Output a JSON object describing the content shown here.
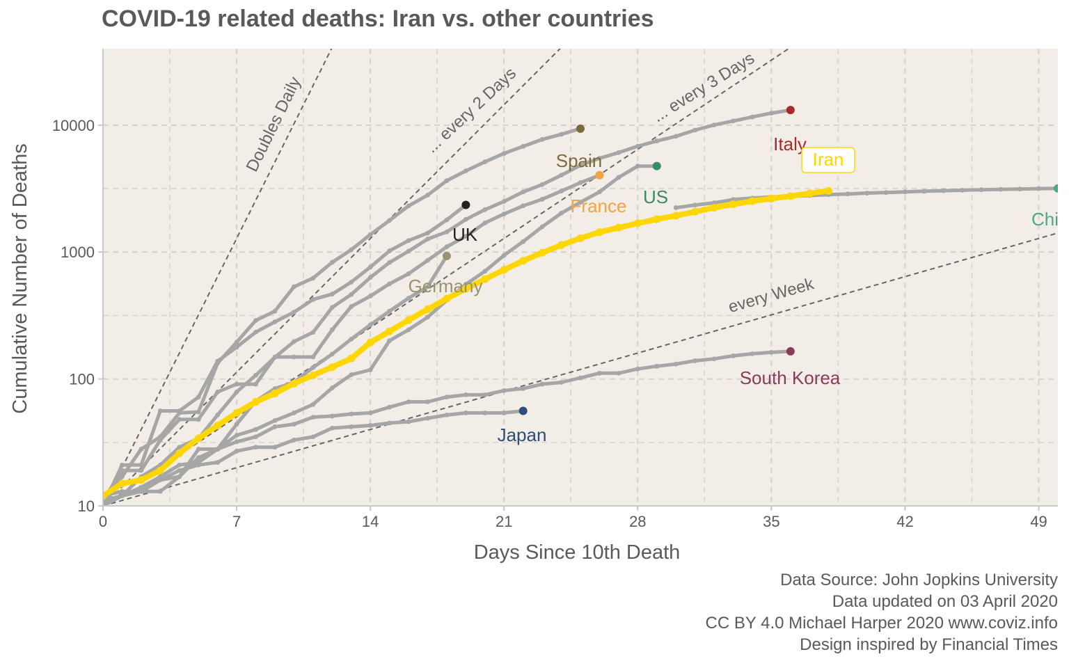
{
  "chart_data": {
    "type": "line",
    "title": "COVID-19 related deaths: Iran vs. other countries",
    "xlabel": "Days Since 10th Death",
    "ylabel": "Cumulative Number of Deaths",
    "xlim": [
      0,
      50
    ],
    "ylim": [
      10,
      40000
    ],
    "y_scale": "log",
    "x_ticks": [
      0,
      7,
      14,
      21,
      28,
      35,
      42,
      49
    ],
    "y_ticks": [
      10,
      100,
      1000,
      10000
    ],
    "y_tick_labels": [
      "10",
      "100",
      "1000",
      "10000"
    ],
    "grid": true,
    "highlight": "Iran",
    "colors": {
      "panel_bg": "#f2ede6",
      "context_line": "#a6a6a6",
      "highlight_line": "#ffd700",
      "reference_line": "#666666",
      "grid": "#d6d2cc"
    },
    "reference_lines": [
      {
        "label": "Doubles Daily",
        "doubling_days": 1
      },
      {
        "label": "... every 2 Days",
        "doubling_days": 2
      },
      {
        "label": "... every 3 Days",
        "doubling_days": 3
      },
      {
        "label": "every  Week",
        "doubling_days": 7
      }
    ],
    "series": [
      {
        "name": "Iran",
        "color": "#ffd700",
        "x": [
          0,
          1,
          2,
          3,
          4,
          5,
          6,
          7,
          8,
          9,
          10,
          11,
          12,
          13,
          14,
          15,
          16,
          17,
          18,
          19,
          20,
          21,
          22,
          23,
          24,
          25,
          26,
          27,
          28,
          29,
          30,
          31,
          32,
          33,
          34,
          35,
          36,
          37,
          38
        ],
        "y": [
          12,
          15,
          16,
          19,
          26,
          34,
          43,
          54,
          66,
          77,
          92,
          107,
          124,
          145,
          194,
          237,
          291,
          354,
          429,
          514,
          611,
          724,
          853,
          988,
          1135,
          1284,
          1433,
          1556,
          1685,
          1812,
          1934,
          2077,
          2234,
          2378,
          2517,
          2640,
          2757,
          2898,
          3036
        ]
      },
      {
        "name": "Italy",
        "color": "#a52a2a",
        "x": [
          0,
          1,
          2,
          3,
          4,
          5,
          6,
          7,
          8,
          9,
          10,
          11,
          12,
          13,
          14,
          15,
          16,
          17,
          18,
          19,
          20,
          21,
          22,
          23,
          24,
          25,
          26,
          27,
          28,
          29,
          30,
          31,
          32,
          33,
          34,
          35,
          36
        ],
        "y": [
          10,
          12,
          17,
          21,
          29,
          34,
          52,
          79,
          107,
          148,
          197,
          233,
          366,
          463,
          631,
          827,
          1016,
          1266,
          1441,
          1809,
          2158,
          2503,
          2978,
          3405,
          4032,
          4825,
          5476,
          6077,
          6820,
          7503,
          8165,
          9134,
          10023,
          10779,
          11591,
          12428,
          13155
        ]
      },
      {
        "name": "Spain",
        "color": "#7a6a3c",
        "x": [
          0,
          1,
          2,
          3,
          4,
          5,
          6,
          7,
          8,
          9,
          10,
          11,
          12,
          13,
          14,
          15,
          16,
          17,
          18,
          19,
          20,
          21,
          22,
          23,
          24,
          25
        ],
        "y": [
          10,
          17,
          28,
          35,
          54,
          55,
          133,
          195,
          289,
          342,
          533,
          623,
          830,
          1043,
          1375,
          1772,
          2311,
          2808,
          3647,
          4365,
          5138,
          5982,
          6803,
          7716,
          8464,
          9387
        ]
      },
      {
        "name": "UK",
        "color": "#222222",
        "x": [
          0,
          1,
          2,
          3,
          4,
          5,
          6,
          7,
          8,
          9,
          10,
          11,
          12,
          13,
          14,
          15,
          16,
          17,
          18,
          19
        ],
        "y": [
          10,
          21,
          21,
          56,
          56,
          72,
          138,
          178,
          234,
          282,
          336,
          423,
          466,
          580,
          761,
          1021,
          1231,
          1411,
          1793,
          2352
        ]
      },
      {
        "name": "France",
        "color": "#f4a340",
        "x": [
          0,
          1,
          2,
          3,
          4,
          5,
          6,
          7,
          8,
          9,
          10,
          11,
          12,
          13,
          14,
          15,
          16,
          17,
          18,
          19,
          20,
          21,
          22,
          23,
          24,
          25,
          26
        ],
        "y": [
          11,
          19,
          19,
          33,
          48,
          48,
          79,
          91,
          91,
          149,
          149,
          149,
          244,
          372,
          450,
          562,
          674,
          860,
          1100,
          1331,
          1696,
          1995,
          2314,
          2606,
          3024,
          3523,
          4032
        ]
      },
      {
        "name": "US",
        "color": "#3b8a6a",
        "x": [
          0,
          1,
          2,
          3,
          4,
          5,
          6,
          7,
          8,
          9,
          10,
          11,
          12,
          13,
          14,
          15,
          16,
          17,
          18,
          19,
          20,
          21,
          22,
          23,
          24,
          25,
          26,
          27,
          28,
          29
        ],
        "y": [
          11,
          12,
          14,
          17,
          21,
          22,
          28,
          36,
          40,
          47,
          54,
          63,
          85,
          108,
          118,
          200,
          244,
          307,
          417,
          557,
          706,
          942,
          1209,
          1581,
          2026,
          2467,
          2978,
          3873,
          4757,
          4757
        ]
      },
      {
        "name": "Germany",
        "color": "#9a9270",
        "x": [
          0,
          1,
          2,
          3,
          4,
          5,
          6,
          7,
          8,
          9,
          10,
          11,
          12,
          13,
          14,
          15,
          16,
          17,
          18
        ],
        "y": [
          12,
          13,
          13,
          13,
          17,
          24,
          28,
          44,
          67,
          84,
          94,
          123,
          157,
          206,
          267,
          342,
          433,
          533,
          931
        ]
      },
      {
        "name": "China",
        "color": "#4aaa88",
        "x": [
          30,
          31,
          32,
          33,
          34,
          35,
          36,
          37,
          38,
          39,
          40,
          41,
          42,
          43,
          44,
          45,
          46,
          47,
          48,
          49,
          50
        ],
        "y": [
          2236,
          2345,
          2442,
          2592,
          2663,
          2715,
          2744,
          2788,
          2835,
          2870,
          2912,
          2943,
          2981,
          3013,
          3042,
          3070,
          3097,
          3119,
          3136,
          3158,
          3173
        ]
      },
      {
        "name": "South Korea",
        "color": "#8b3a5a",
        "x": [
          0,
          1,
          2,
          3,
          4,
          5,
          6,
          7,
          8,
          9,
          10,
          11,
          12,
          13,
          14,
          15,
          16,
          17,
          18,
          19,
          20,
          21,
          22,
          23,
          24,
          25,
          26,
          27,
          28,
          29,
          30,
          31,
          32,
          33,
          34,
          35,
          36
        ],
        "y": [
          11,
          12,
          13,
          16,
          17,
          28,
          28,
          32,
          35,
          42,
          44,
          50,
          51,
          53,
          54,
          60,
          66,
          66,
          72,
          75,
          75,
          81,
          84,
          91,
          94,
          102,
          111,
          111,
          120,
          126,
          131,
          139,
          144,
          152,
          158,
          162,
          165
        ]
      },
      {
        "name": "Japan",
        "color": "#2e4e78",
        "x": [
          0,
          1,
          2,
          3,
          4,
          5,
          6,
          7,
          8,
          9,
          10,
          11,
          12,
          13,
          14,
          15,
          16,
          17,
          18,
          19,
          20,
          21,
          22
        ],
        "y": [
          11,
          12,
          13,
          16,
          19,
          21,
          22,
          27,
          29,
          29,
          33,
          35,
          41,
          42,
          43,
          45,
          46,
          49,
          52,
          54,
          54,
          54,
          56
        ]
      }
    ],
    "annotations": [
      {
        "text": "Italy",
        "series": "Italy"
      },
      {
        "text": "Iran",
        "series": "Iran",
        "boxed": true
      },
      {
        "text": "Spain",
        "series": "Spain"
      },
      {
        "text": "UK",
        "series": "UK"
      },
      {
        "text": "France",
        "series": "France"
      },
      {
        "text": "US",
        "series": "US"
      },
      {
        "text": "Germany",
        "series": "Germany"
      },
      {
        "text": "China",
        "series": "China"
      },
      {
        "text": "South Korea",
        "series": "South Korea"
      },
      {
        "text": "Japan",
        "series": "Japan"
      }
    ]
  },
  "caption": {
    "line1": "Data Source: John Jopkins University",
    "line2": "Data updated on 03 April 2020",
    "line3": "CC BY 4.0 Michael Harper 2020 www.coviz.info",
    "line4": "Design inspired by Financial Times"
  }
}
